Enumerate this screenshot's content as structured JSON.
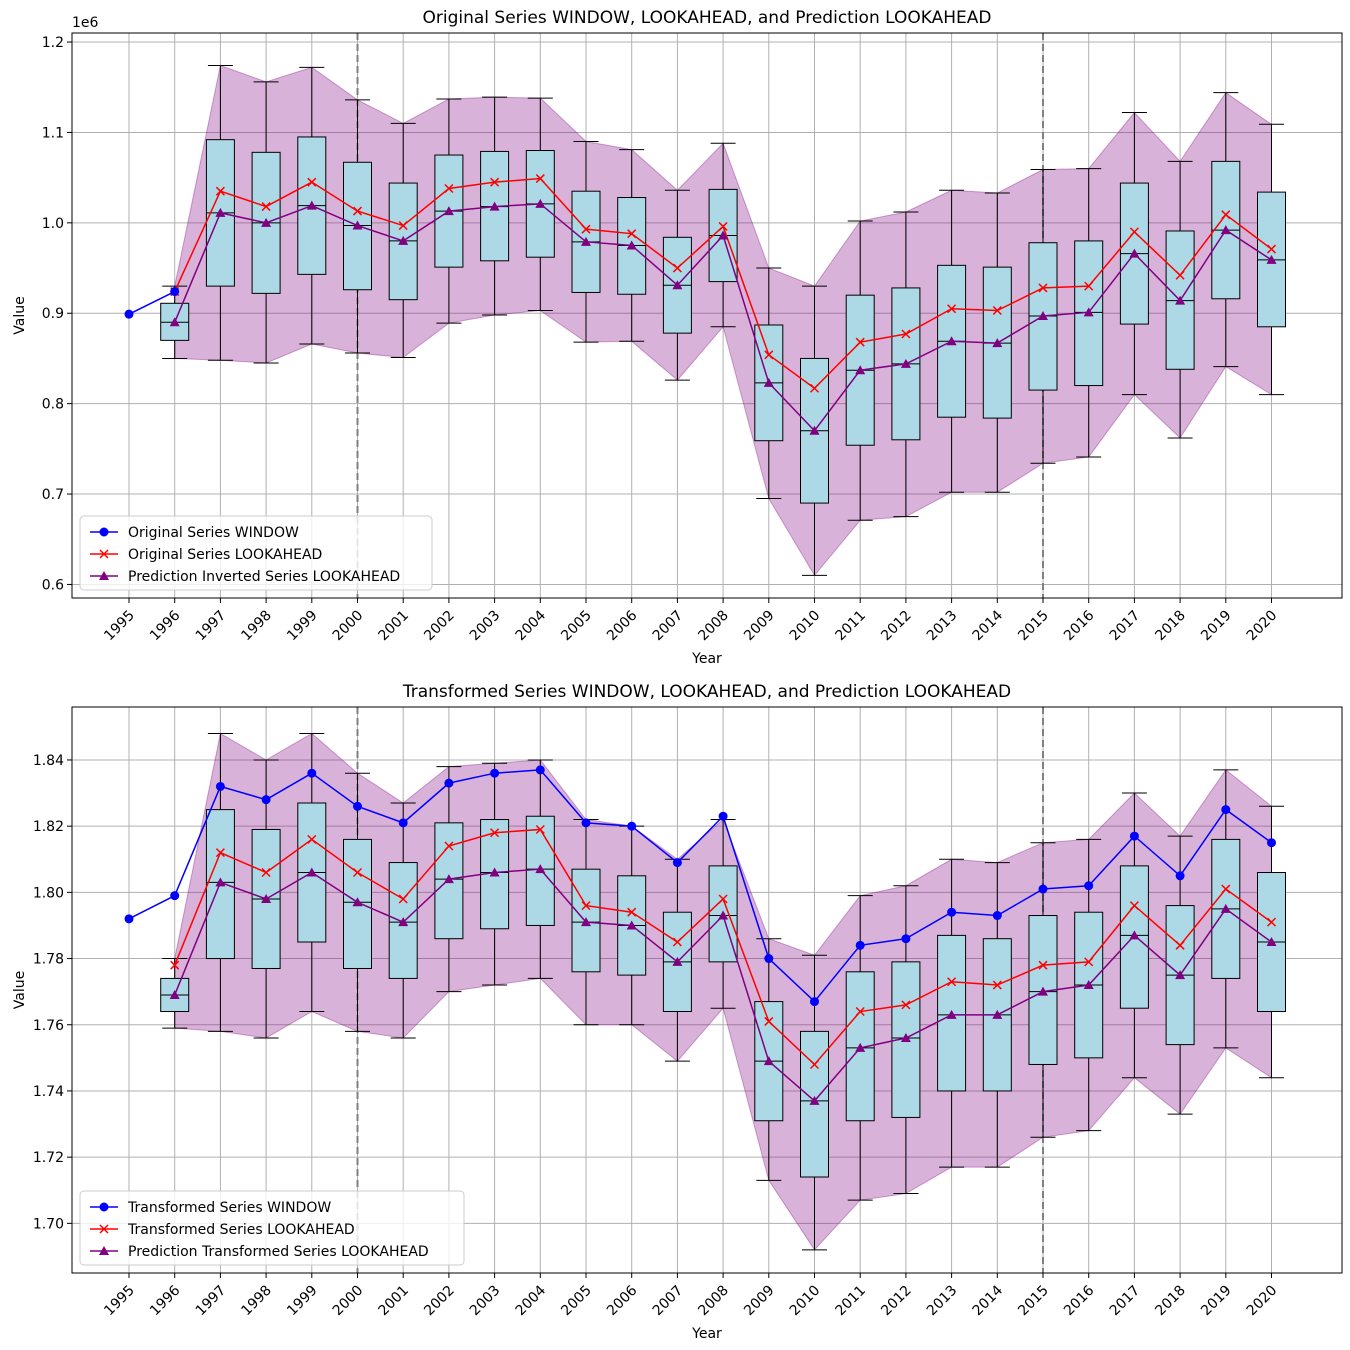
{
  "chart_data": [
    {
      "type": "line",
      "title": "Original Series WINDOW, LOOKAHEAD, and Prediction LOOKAHEAD",
      "xlabel": "Year",
      "ylabel": "Value",
      "y_offset_label": "1e6",
      "ylim": [
        0.585,
        1.21
      ],
      "yticks": [
        0.6,
        0.7,
        0.8,
        0.9,
        1.0,
        1.1,
        1.2
      ],
      "ytick_labels": [
        "0.6",
        "0.7",
        "0.8",
        "0.9",
        "1.0",
        "1.1",
        "1.2"
      ],
      "categories": [
        "1995",
        "1996",
        "1997",
        "1998",
        "1999",
        "2000",
        "2001",
        "2002",
        "2003",
        "2004",
        "2005",
        "2006",
        "2007",
        "2008",
        "2009",
        "2010",
        "2011",
        "2012",
        "2013",
        "2014",
        "2015",
        "2016",
        "2017",
        "2018",
        "2019",
        "2020"
      ],
      "vlines": [
        "2000",
        "2015"
      ],
      "legend_location": "lower-left",
      "legend": [
        "Original Series WINDOW",
        "Original Series LOOKAHEAD",
        "Prediction Inverted Series LOOKAHEAD"
      ],
      "series": [
        {
          "name": "Original Series WINDOW",
          "color": "#0000ff",
          "marker": "circle",
          "values": [
            0.899,
            0.924,
            null,
            null,
            null,
            null,
            null,
            null,
            null,
            null,
            null,
            null,
            null,
            null,
            null,
            null,
            null,
            null,
            null,
            null,
            null,
            null,
            null,
            null,
            null,
            null
          ]
        },
        {
          "name": "Original Series LOOKAHEAD",
          "color": "#ff0000",
          "marker": "x",
          "values": [
            null,
            0.924,
            1.035,
            1.018,
            1.045,
            1.013,
            0.997,
            1.038,
            1.045,
            1.049,
            0.993,
            0.988,
            0.95,
            0.996,
            0.854,
            0.817,
            0.868,
            0.877,
            0.905,
            0.903,
            0.928,
            0.93,
            0.99,
            0.942,
            1.009,
            0.971
          ]
        },
        {
          "name": "Prediction Inverted Series LOOKAHEAD",
          "color": "#800080",
          "marker": "triangle",
          "values": [
            null,
            0.89,
            1.011,
            1.0,
            1.019,
            0.997,
            0.98,
            1.013,
            1.018,
            1.021,
            0.979,
            0.975,
            0.931,
            0.986,
            0.823,
            0.77,
            0.837,
            0.844,
            0.869,
            0.867,
            0.897,
            0.901,
            0.966,
            0.914,
            0.992,
            0.959
          ]
        }
      ],
      "band": {
        "color": "#800080",
        "lower": [
          null,
          0.85,
          0.848,
          0.845,
          0.866,
          0.856,
          0.851,
          0.889,
          0.898,
          0.903,
          0.868,
          0.869,
          0.826,
          0.885,
          0.695,
          0.61,
          0.671,
          0.675,
          0.702,
          0.702,
          0.734,
          0.741,
          0.81,
          0.762,
          0.841,
          0.81
        ],
        "upper": [
          null,
          0.93,
          1.174,
          1.156,
          1.172,
          1.136,
          1.11,
          1.137,
          1.139,
          1.138,
          1.09,
          1.081,
          1.036,
          1.088,
          0.95,
          0.93,
          1.002,
          1.012,
          1.036,
          1.033,
          1.059,
          1.06,
          1.122,
          1.068,
          1.144,
          1.109
        ]
      },
      "boxes": {
        "fill": "#add8e6",
        "q1": [
          null,
          0.87,
          0.93,
          0.922,
          0.943,
          0.926,
          0.915,
          0.951,
          0.958,
          0.962,
          0.923,
          0.921,
          0.878,
          0.935,
          0.759,
          0.69,
          0.754,
          0.76,
          0.785,
          0.784,
          0.815,
          0.82,
          0.888,
          0.838,
          0.916,
          0.885
        ],
        "median": [
          null,
          0.89,
          1.011,
          1.0,
          1.019,
          0.997,
          0.98,
          1.013,
          1.018,
          1.021,
          0.979,
          0.975,
          0.931,
          0.986,
          0.823,
          0.77,
          0.837,
          0.844,
          0.869,
          0.867,
          0.897,
          0.901,
          0.966,
          0.914,
          0.992,
          0.959
        ],
        "q3": [
          null,
          0.911,
          1.092,
          1.078,
          1.095,
          1.067,
          1.044,
          1.075,
          1.079,
          1.08,
          1.035,
          1.028,
          0.984,
          1.037,
          0.887,
          0.85,
          0.92,
          0.928,
          0.953,
          0.951,
          0.978,
          0.98,
          1.044,
          0.991,
          1.068,
          1.034
        ],
        "whisker_low": [
          null,
          0.85,
          0.848,
          0.845,
          0.866,
          0.856,
          0.851,
          0.889,
          0.898,
          0.903,
          0.868,
          0.869,
          0.826,
          0.885,
          0.695,
          0.61,
          0.671,
          0.675,
          0.702,
          0.702,
          0.734,
          0.741,
          0.81,
          0.762,
          0.841,
          0.81
        ],
        "whisker_high": [
          null,
          0.93,
          1.174,
          1.156,
          1.172,
          1.136,
          1.11,
          1.137,
          1.139,
          1.138,
          1.09,
          1.081,
          1.036,
          1.088,
          0.95,
          0.93,
          1.002,
          1.012,
          1.036,
          1.033,
          1.059,
          1.06,
          1.122,
          1.068,
          1.144,
          1.109
        ]
      }
    },
    {
      "type": "line",
      "title": "Transformed Series WINDOW, LOOKAHEAD, and Prediction LOOKAHEAD",
      "xlabel": "Year",
      "ylabel": "Value",
      "ylim": [
        1.685,
        1.856
      ],
      "yticks": [
        1.7,
        1.72,
        1.74,
        1.76,
        1.78,
        1.8,
        1.82,
        1.84
      ],
      "ytick_labels": [
        "1.70",
        "1.72",
        "1.74",
        "1.76",
        "1.78",
        "1.80",
        "1.82",
        "1.84"
      ],
      "categories": [
        "1995",
        "1996",
        "1997",
        "1998",
        "1999",
        "2000",
        "2001",
        "2002",
        "2003",
        "2004",
        "2005",
        "2006",
        "2007",
        "2008",
        "2009",
        "2010",
        "2011",
        "2012",
        "2013",
        "2014",
        "2015",
        "2016",
        "2017",
        "2018",
        "2019",
        "2020"
      ],
      "vlines": [
        "2000",
        "2015"
      ],
      "legend_location": "lower-left",
      "legend": [
        "Transformed Series WINDOW",
        "Transformed Series LOOKAHEAD",
        "Prediction Transformed Series LOOKAHEAD"
      ],
      "series": [
        {
          "name": "Transformed Series WINDOW",
          "color": "#0000ff",
          "marker": "circle",
          "values": [
            1.792,
            1.799,
            1.832,
            1.828,
            1.836,
            1.826,
            1.821,
            1.833,
            1.836,
            1.837,
            1.821,
            1.82,
            1.809,
            1.823,
            1.78,
            1.767,
            1.784,
            1.786,
            1.794,
            1.793,
            1.801,
            1.802,
            1.817,
            1.805,
            1.825,
            1.815
          ]
        },
        {
          "name": "Transformed Series LOOKAHEAD",
          "color": "#ff0000",
          "marker": "x",
          "values": [
            null,
            1.778,
            1.812,
            1.806,
            1.816,
            1.806,
            1.798,
            1.814,
            1.818,
            1.819,
            1.796,
            1.794,
            1.785,
            1.798,
            1.761,
            1.748,
            1.764,
            1.766,
            1.773,
            1.772,
            1.778,
            1.779,
            1.796,
            1.784,
            1.801,
            1.791
          ]
        },
        {
          "name": "Prediction Transformed Series LOOKAHEAD",
          "color": "#800080",
          "marker": "triangle",
          "values": [
            null,
            1.769,
            1.803,
            1.798,
            1.806,
            1.797,
            1.791,
            1.804,
            1.806,
            1.807,
            1.791,
            1.79,
            1.779,
            1.793,
            1.749,
            1.737,
            1.753,
            1.756,
            1.763,
            1.763,
            1.77,
            1.772,
            1.787,
            1.775,
            1.795,
            1.785
          ]
        }
      ],
      "band": {
        "color": "#800080",
        "lower": [
          null,
          1.759,
          1.758,
          1.756,
          1.764,
          1.758,
          1.756,
          1.77,
          1.772,
          1.774,
          1.76,
          1.76,
          1.749,
          1.765,
          1.713,
          1.692,
          1.707,
          1.709,
          1.717,
          1.717,
          1.726,
          1.728,
          1.744,
          1.733,
          1.753,
          1.744
        ],
        "upper": [
          null,
          1.78,
          1.848,
          1.84,
          1.848,
          1.836,
          1.827,
          1.838,
          1.839,
          1.84,
          1.822,
          1.82,
          1.81,
          1.822,
          1.786,
          1.781,
          1.799,
          1.802,
          1.81,
          1.809,
          1.815,
          1.816,
          1.83,
          1.817,
          1.837,
          1.826
        ]
      },
      "boxes": {
        "fill": "#add8e6",
        "q1": [
          null,
          1.764,
          1.78,
          1.777,
          1.785,
          1.777,
          1.774,
          1.786,
          1.789,
          1.79,
          1.776,
          1.775,
          1.764,
          1.779,
          1.731,
          1.714,
          1.731,
          1.732,
          1.74,
          1.74,
          1.748,
          1.75,
          1.765,
          1.754,
          1.774,
          1.764
        ],
        "median": [
          null,
          1.769,
          1.803,
          1.798,
          1.806,
          1.797,
          1.791,
          1.804,
          1.806,
          1.807,
          1.791,
          1.79,
          1.779,
          1.793,
          1.749,
          1.737,
          1.753,
          1.756,
          1.763,
          1.763,
          1.77,
          1.772,
          1.787,
          1.775,
          1.795,
          1.785
        ],
        "q3": [
          null,
          1.774,
          1.825,
          1.819,
          1.827,
          1.816,
          1.809,
          1.821,
          1.822,
          1.823,
          1.807,
          1.805,
          1.794,
          1.808,
          1.767,
          1.758,
          1.776,
          1.779,
          1.787,
          1.786,
          1.793,
          1.794,
          1.808,
          1.796,
          1.816,
          1.806
        ],
        "whisker_low": [
          null,
          1.759,
          1.758,
          1.756,
          1.764,
          1.758,
          1.756,
          1.77,
          1.772,
          1.774,
          1.76,
          1.76,
          1.749,
          1.765,
          1.713,
          1.692,
          1.707,
          1.709,
          1.717,
          1.717,
          1.726,
          1.728,
          1.744,
          1.733,
          1.753,
          1.744
        ],
        "whisker_high": [
          null,
          1.78,
          1.848,
          1.84,
          1.848,
          1.836,
          1.827,
          1.838,
          1.839,
          1.84,
          1.822,
          1.82,
          1.81,
          1.822,
          1.786,
          1.781,
          1.799,
          1.802,
          1.81,
          1.809,
          1.815,
          1.816,
          1.83,
          1.817,
          1.837,
          1.826
        ]
      }
    }
  ]
}
